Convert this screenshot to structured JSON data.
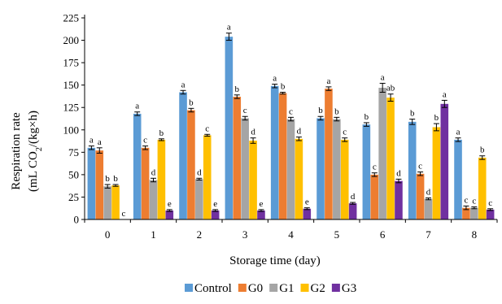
{
  "chart_data": {
    "type": "bar",
    "xlabel": "Storage time (day)",
    "ylabel_line1": "Respiration rate",
    "ylabel_line2_prefix": "(mL CO",
    "ylabel_line2_sub": "2",
    "ylabel_line2_suffix": "/(kg×h)",
    "ylim": [
      0,
      225
    ],
    "yticks": [
      0,
      25,
      50,
      75,
      100,
      125,
      150,
      175,
      200,
      225
    ],
    "categories": [
      "0",
      "1",
      "2",
      "3",
      "4",
      "5",
      "6",
      "7",
      "8"
    ],
    "grid": false,
    "legend_position": "bottom",
    "series": [
      {
        "name": "Control",
        "color": "#5b9bd5",
        "values": [
          80,
          118,
          142,
          204,
          149,
          113,
          106,
          109,
          89
        ],
        "errors": [
          2,
          2,
          2,
          4,
          2,
          2,
          2,
          3,
          2
        ],
        "labels": [
          "a",
          "a",
          "a",
          "a",
          "a",
          "b",
          "b",
          "b",
          "a"
        ]
      },
      {
        "name": "G0",
        "color": "#ed7d31",
        "values": [
          77,
          80,
          122,
          137,
          141,
          146,
          50,
          51,
          13
        ],
        "errors": [
          3,
          2,
          2,
          2,
          1,
          2,
          2,
          2,
          2
        ],
        "labels": [
          "a",
          "c",
          "b",
          "b",
          "b",
          "a",
          "c",
          "c",
          "c"
        ]
      },
      {
        "name": "G1",
        "color": "#a5a5a5",
        "values": [
          37,
          44,
          45,
          113,
          112,
          112,
          147,
          23,
          13
        ],
        "errors": [
          2,
          2,
          1,
          2,
          2,
          2,
          5,
          1,
          1
        ],
        "labels": [
          "b",
          "d",
          "d",
          "c",
          "c",
          "b",
          "a",
          "d",
          "c"
        ]
      },
      {
        "name": "G2",
        "color": "#ffc000",
        "values": [
          38,
          89,
          94,
          88,
          90,
          89,
          136,
          103,
          69
        ],
        "errors": [
          1,
          1,
          1,
          3,
          2,
          2,
          4,
          4,
          2
        ],
        "labels": [
          "b",
          "b",
          "c",
          "d",
          "d",
          "c",
          "ab",
          "b",
          "b"
        ]
      },
      {
        "name": "G3",
        "color": "#7030a0",
        "values": [
          0,
          10,
          10,
          10,
          12,
          18,
          43,
          129,
          11
        ],
        "errors": [
          0,
          1,
          1,
          1,
          1,
          1,
          2,
          4,
          1
        ],
        "labels": [
          "c",
          "e",
          "e",
          "e",
          "e",
          "d",
          "d",
          "a",
          "c"
        ]
      }
    ]
  }
}
